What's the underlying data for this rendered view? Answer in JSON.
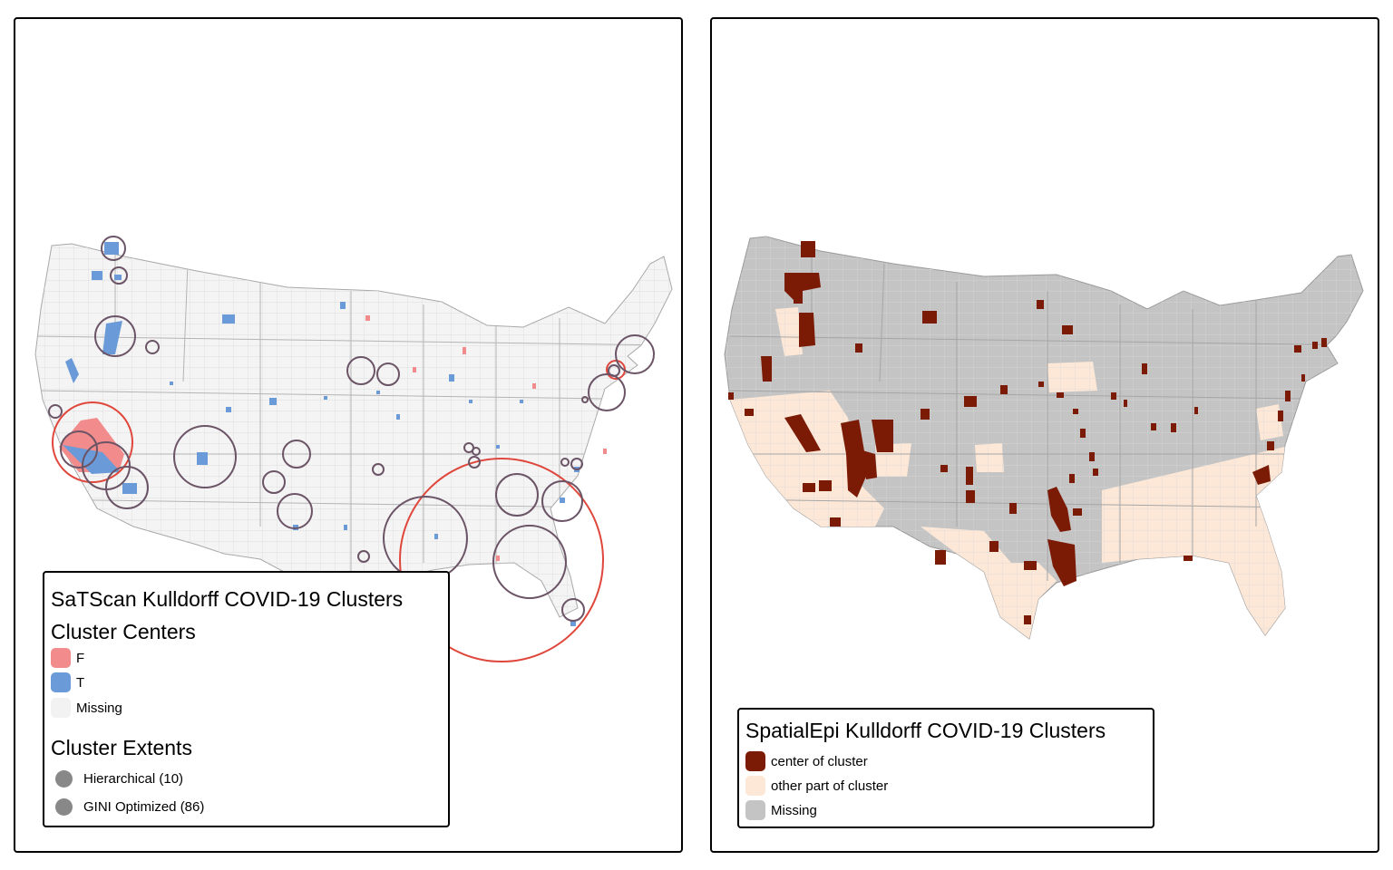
{
  "left_map": {
    "legend": {
      "title": "SaTScan Kulldorff COVID-19 Clusters",
      "centers_heading": "Cluster Centers",
      "center_items": [
        {
          "label": "F",
          "color": "#f28b8b"
        },
        {
          "label": "T",
          "color": "#6a9bd8"
        },
        {
          "label": "Missing",
          "color": "#f2f2f2"
        }
      ],
      "extents_heading": "Cluster Extents",
      "extent_items": [
        {
          "label": "Hierarchical (10)",
          "color": "#888888"
        },
        {
          "label": "GINI Optimized (86)",
          "color": "#888888"
        }
      ]
    },
    "colors": {
      "hierarchical_circle": "#e0473c",
      "gini_circle": "#6b5466",
      "land": "#f4f4f4",
      "county_border": "#d6d6d6"
    }
  },
  "right_map": {
    "legend": {
      "title": "SpatialEpi Kulldorff COVID-19 Clusters",
      "items": [
        {
          "label": "center of cluster",
          "color": "#7b1a05"
        },
        {
          "label": "other part of cluster",
          "color": "#fde8d7"
        },
        {
          "label": "Missing",
          "color": "#c4c4c4"
        }
      ]
    },
    "colors": {
      "land": "#c4c4c4",
      "center": "#7b1a05",
      "other": "#fde8d7"
    }
  }
}
